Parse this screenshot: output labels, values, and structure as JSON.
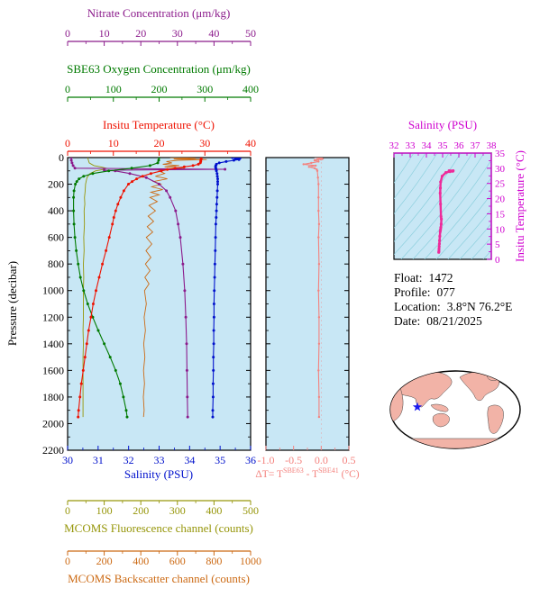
{
  "app": {
    "name": "float-profile-plot"
  },
  "axes": {
    "nitrate": {
      "label": "Nitrate Concentration (μm/kg)",
      "ticks": [
        "0",
        "10",
        "20",
        "30",
        "40",
        "50"
      ],
      "range": [
        0,
        50
      ],
      "color": "#8b1a8b"
    },
    "oxygen": {
      "label": "SBE63 Oxygen Concentration (μm/kg)",
      "ticks": [
        "0",
        "100",
        "200",
        "300",
        "400"
      ],
      "range": [
        0,
        400
      ],
      "color": "#007a00"
    },
    "temperature": {
      "label": "Insitu Temperature (°C)",
      "ticks": [
        "0",
        "10",
        "20",
        "30",
        "40"
      ],
      "range": [
        0,
        40
      ],
      "color": "#ee1100"
    },
    "pressure": {
      "label": "Pressure (decibar)",
      "ticks": [
        "0",
        "200",
        "400",
        "600",
        "800",
        "1000",
        "1200",
        "1400",
        "1600",
        "1800",
        "2000",
        "2200"
      ],
      "range": [
        0,
        2200
      ],
      "color": "#000000"
    },
    "salinity": {
      "label": "Salinity (PSU)",
      "ticks": [
        "30",
        "31",
        "32",
        "33",
        "34",
        "35",
        "36"
      ],
      "range": [
        30,
        36
      ],
      "color": "#0011cc"
    },
    "fluorescence": {
      "label": "MCOMS Fluorescence channel (counts)",
      "ticks": [
        "0",
        "100",
        "200",
        "300",
        "400",
        "500"
      ],
      "range": [
        0,
        500
      ],
      "color": "#96960a"
    },
    "backscatter": {
      "label": "MCOMS Backscatter channel (counts)",
      "ticks": [
        "0",
        "200",
        "400",
        "600",
        "800",
        "1000"
      ],
      "range": [
        0,
        1000
      ],
      "color": "#cc6a14"
    },
    "delta_t": {
      "label_parts": {
        "pre": "ΔT= T",
        "sup1": "SBE63",
        "mid": " - T",
        "sup2": "SBE41",
        "post": " (°C)"
      },
      "ticks": [
        "-1.0",
        "-0.5",
        "0.0",
        "0.5"
      ],
      "tick_values": [
        -1.0,
        -0.5,
        0.0,
        0.5
      ],
      "range": [
        -1.0,
        0.5
      ],
      "color": "#f4827e"
    },
    "ts_salinity": {
      "label": "Salinity (PSU)",
      "ticks": [
        "32",
        "33",
        "34",
        "35",
        "36",
        "37",
        "38"
      ],
      "range": [
        32,
        38
      ],
      "color": "#cf00cf"
    },
    "ts_temperature": {
      "label": "Insitu Temperature (°C)",
      "ticks": [
        "0",
        "5",
        "10",
        "15",
        "20",
        "25",
        "30",
        "35"
      ],
      "range": [
        0,
        35
      ],
      "color": "#cf00cf"
    }
  },
  "info": {
    "rows": [
      {
        "label": "Float:",
        "value": "1472"
      },
      {
        "label": "Profile:",
        "value": "077"
      },
      {
        "label": "Location:",
        "value": "3.8°N  76.2°E"
      },
      {
        "label": "Date:",
        "value": "08/21/2025"
      }
    ]
  },
  "colors": {
    "plot_bg": "#c8e7f5",
    "frame": "#000000",
    "ts_curve": "#ee2a9a",
    "ts_contours": "#8ccfdd",
    "map_land": "#f2b3a7",
    "map_ocean": "#ffffff",
    "map_marker": "#1a1aee"
  },
  "chart_data": [
    {
      "id": "profile",
      "type": "line",
      "title": "Multi-sensor vertical profile",
      "y_axis": "pressure",
      "y_range": [
        0,
        2200
      ],
      "y_inverted": true,
      "x_axes_top": [
        "nitrate",
        "oxygen",
        "temperature"
      ],
      "x_axes_bottom": [
        "salinity",
        "fluorescence",
        "backscatter"
      ],
      "series": [
        {
          "name": "temperature",
          "axis": "temperature",
          "color": "#ee1100",
          "marker": true,
          "pressure": [
            0,
            10,
            20,
            30,
            40,
            50,
            60,
            70,
            80,
            90,
            100,
            120,
            140,
            160,
            180,
            200,
            250,
            300,
            350,
            400,
            450,
            500,
            600,
            700,
            800,
            900,
            1000,
            1100,
            1200,
            1300,
            1400,
            1500,
            1600,
            1700,
            1800,
            1900,
            1950
          ],
          "values": [
            29.2,
            29.2,
            29.1,
            29.1,
            29.0,
            28.6,
            27.4,
            25.5,
            23.5,
            21.8,
            20.5,
            18.2,
            16.4,
            15.1,
            14.1,
            13.3,
            12.3,
            11.6,
            11.0,
            10.5,
            10.1,
            9.8,
            9.1,
            8.4,
            7.6,
            6.9,
            6.2,
            5.6,
            5.1,
            4.6,
            4.2,
            3.8,
            3.4,
            3.0,
            2.7,
            2.4,
            2.3
          ]
        },
        {
          "name": "salinity",
          "axis": "salinity",
          "color": "#0011cc",
          "marker": true,
          "pressure": [
            0,
            5,
            10,
            15,
            20,
            30,
            40,
            50,
            60,
            70,
            80,
            90,
            100,
            120,
            140,
            160,
            180,
            200,
            250,
            300,
            350,
            400,
            450,
            500,
            600,
            700,
            800,
            900,
            1000,
            1100,
            1200,
            1300,
            1400,
            1500,
            1600,
            1700,
            1800,
            1900,
            1950
          ],
          "values": [
            35.4,
            35.65,
            35.5,
            35.62,
            35.45,
            35.2,
            34.97,
            34.88,
            34.86,
            34.85,
            34.86,
            34.87,
            34.88,
            34.9,
            34.91,
            34.92,
            34.92,
            34.92,
            34.91,
            34.9,
            34.89,
            34.88,
            34.87,
            34.86,
            34.85,
            34.84,
            34.83,
            34.82,
            34.81,
            34.8,
            34.8,
            34.79,
            34.79,
            34.78,
            34.78,
            34.77,
            34.77,
            34.76,
            34.76
          ]
        },
        {
          "name": "nitrate",
          "axis": "nitrate",
          "color": "#8b1a8b",
          "marker": true,
          "pressure": [
            0,
            20,
            40,
            60,
            80,
            88,
            95,
            100,
            120,
            150,
            200,
            250,
            300,
            400,
            500,
            600,
            800,
            1000,
            1200,
            1400,
            1600,
            1800,
            1950
          ],
          "values": [
            1.0,
            1.0,
            1.2,
            1.5,
            2.0,
            43.0,
            10.0,
            13.0,
            17.0,
            21.5,
            25.0,
            27.0,
            28.0,
            29.5,
            30.2,
            30.8,
            31.5,
            32.0,
            32.3,
            32.5,
            32.6,
            32.7,
            32.8
          ]
        },
        {
          "name": "oxygen",
          "axis": "oxygen",
          "color": "#007a00",
          "marker": true,
          "pressure": [
            0,
            20,
            40,
            60,
            80,
            100,
            120,
            140,
            160,
            180,
            200,
            250,
            300,
            400,
            500,
            600,
            700,
            800,
            900,
            1000,
            1100,
            1200,
            1300,
            1400,
            1500,
            1600,
            1700,
            1800,
            1900,
            1950
          ],
          "values": [
            200,
            199,
            197,
            180,
            140,
            90,
            55,
            35,
            25,
            20,
            17,
            14,
            13,
            13,
            14,
            16,
            19,
            23,
            28,
            35,
            44,
            55,
            67,
            80,
            93,
            105,
            115,
            122,
            128,
            130
          ]
        },
        {
          "name": "fluorescence",
          "axis": "fluorescence",
          "color": "#96960a",
          "marker": false,
          "pressure": [
            0,
            20,
            40,
            60,
            70,
            80,
            90,
            100,
            120,
            150,
            200,
            250,
            300,
            350,
            400,
            500,
            600,
            700,
            800,
            900,
            1000,
            1100,
            1200,
            1300,
            1400,
            1500,
            1600,
            1700,
            1800,
            1900,
            1950
          ],
          "values": [
            55,
            57,
            59,
            72,
            90,
            106,
            96,
            76,
            61,
            53,
            49,
            48,
            46,
            47,
            45,
            46,
            44,
            45,
            43,
            44,
            43,
            43,
            43,
            42,
            43,
            42,
            42,
            42,
            42,
            42,
            42
          ]
        },
        {
          "name": "backscatter",
          "axis": "backscatter",
          "color": "#cc6a14",
          "marker": false,
          "pressure": [
            0,
            5,
            10,
            15,
            20,
            30,
            40,
            50,
            60,
            70,
            80,
            90,
            100,
            120,
            140,
            160,
            180,
            200,
            220,
            240,
            260,
            280,
            300,
            330,
            360,
            400,
            440,
            480,
            520,
            560,
            600,
            650,
            700,
            750,
            800,
            850,
            900,
            950,
            1000,
            1100,
            1200,
            1300,
            1400,
            1500,
            1600,
            1700,
            1800,
            1900,
            1950
          ],
          "values": [
            560,
            700,
            580,
            760,
            600,
            540,
            570,
            520,
            610,
            530,
            640,
            540,
            500,
            530,
            480,
            545,
            470,
            510,
            460,
            520,
            455,
            500,
            450,
            490,
            445,
            480,
            440,
            470,
            435,
            465,
            430,
            460,
            428,
            455,
            425,
            450,
            422,
            445,
            420,
            430,
            418,
            425,
            416,
            422,
            415,
            420,
            414,
            418,
            415
          ]
        }
      ]
    },
    {
      "id": "delta_t",
      "type": "line",
      "title": "SBE63 minus SBE41 temperature difference",
      "x_axis": "delta_t",
      "x_range": [
        -1.0,
        0.5
      ],
      "y_axis": "pressure",
      "color": "#f4827e",
      "pressure": [
        0,
        10,
        20,
        30,
        40,
        50,
        60,
        70,
        80,
        90,
        100,
        150,
        200,
        300,
        400,
        500,
        600,
        800,
        1000,
        1200,
        1400,
        1600,
        1800,
        1950
      ],
      "values": [
        -0.05,
        0.02,
        -0.12,
        -0.05,
        -0.18,
        -0.32,
        -0.1,
        -0.22,
        -0.12,
        -0.08,
        -0.07,
        -0.06,
        -0.05,
        -0.05,
        -0.05,
        -0.04,
        -0.05,
        -0.04,
        -0.05,
        -0.04,
        -0.04,
        -0.05,
        -0.04,
        -0.04
      ]
    },
    {
      "id": "ts",
      "type": "line",
      "title": "Temperature-Salinity diagram",
      "x_axis": "ts_salinity",
      "x_range": [
        32,
        38
      ],
      "y_axis": "ts_temperature",
      "y_range": [
        0,
        35
      ],
      "color": "#ee2a9a",
      "salinity": [
        35.4,
        35.65,
        35.5,
        35.62,
        35.45,
        35.2,
        34.97,
        34.88,
        34.86,
        34.85,
        34.87,
        34.9,
        34.92,
        34.91,
        34.89,
        34.87,
        34.85,
        34.83,
        34.81,
        34.8,
        34.79,
        34.78,
        34.77,
        34.76
      ],
      "temperature": [
        29.2,
        29.2,
        29.1,
        29.0,
        28.9,
        28.6,
        27.4,
        25.5,
        23.5,
        21.8,
        18.2,
        14.1,
        13.3,
        11.6,
        10.5,
        9.8,
        9.1,
        7.6,
        6.2,
        5.1,
        4.2,
        3.4,
        2.7,
        2.3
      ]
    },
    {
      "id": "map",
      "type": "map",
      "title": "Float position map",
      "marker": {
        "name": "float-position",
        "lat": "3.8°N",
        "lon": "76.2°E",
        "color": "#1a1aee"
      }
    }
  ]
}
